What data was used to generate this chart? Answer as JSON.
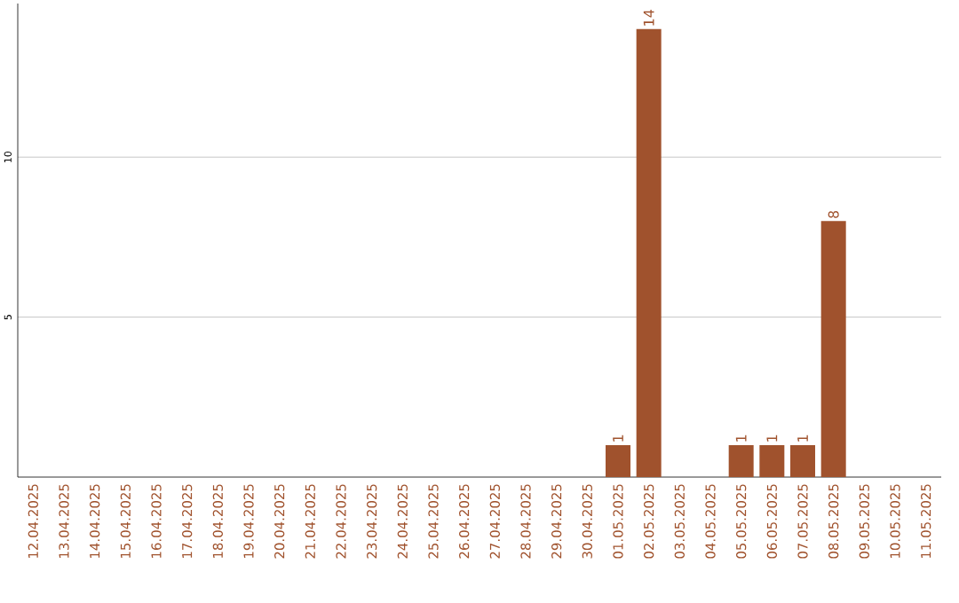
{
  "chart_data": {
    "type": "bar",
    "categories": [
      "12.04.2025",
      "13.04.2025",
      "14.04.2025",
      "15.04.2025",
      "16.04.2025",
      "17.04.2025",
      "18.04.2025",
      "19.04.2025",
      "20.04.2025",
      "21.04.2025",
      "22.04.2025",
      "23.04.2025",
      "24.04.2025",
      "25.04.2025",
      "26.04.2025",
      "27.04.2025",
      "28.04.2025",
      "29.04.2025",
      "30.04.2025",
      "01.05.2025",
      "02.05.2025",
      "03.05.2025",
      "04.05.2025",
      "05.05.2025",
      "06.05.2025",
      "07.05.2025",
      "08.05.2025",
      "09.05.2025",
      "10.05.2025",
      "11.05.2025"
    ],
    "values": [
      0,
      0,
      0,
      0,
      0,
      0,
      0,
      0,
      0,
      0,
      0,
      0,
      0,
      0,
      0,
      0,
      0,
      0,
      0,
      1,
      14,
      0,
      0,
      1,
      1,
      1,
      8,
      0,
      0,
      0
    ],
    "value_labels": [
      null,
      null,
      null,
      null,
      null,
      null,
      null,
      null,
      null,
      null,
      null,
      null,
      null,
      null,
      null,
      null,
      null,
      null,
      null,
      "1",
      "14",
      null,
      null,
      "1",
      "1",
      "1",
      "8",
      null,
      null,
      null
    ],
    "color": "#a0522d",
    "ylim": [
      0,
      14.8
    ],
    "yticks": [
      5,
      10
    ],
    "grid": "y"
  }
}
